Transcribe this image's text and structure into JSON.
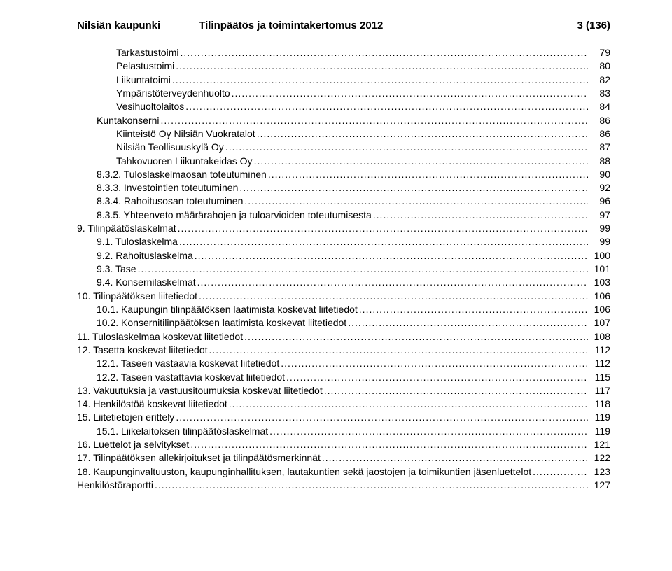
{
  "header": {
    "left": "Nilsiän kaupunki",
    "center": "Tilinpäätös ja toimintakertomus 2012",
    "right": "3 (136)"
  },
  "toc": [
    {
      "label": "Tarkastustoimi",
      "page": "79",
      "indent": 2
    },
    {
      "label": "Pelastustoimi",
      "page": "80",
      "indent": 2
    },
    {
      "label": "Liikuntatoimi",
      "page": "82",
      "indent": 2
    },
    {
      "label": "Ympäristöterveydenhuolto",
      "page": "83",
      "indent": 2
    },
    {
      "label": "Vesihuoltolaitos",
      "page": "84",
      "indent": 2
    },
    {
      "label": "Kuntakonserni",
      "page": "86",
      "indent": 1
    },
    {
      "label": "Kiinteistö Oy Nilsiän Vuokratalot",
      "page": "86",
      "indent": 2
    },
    {
      "label": "Nilsiän Teollisuuskylä Oy",
      "page": "87",
      "indent": 2
    },
    {
      "label": "Tahkovuoren Liikuntakeidas Oy",
      "page": "88",
      "indent": 2
    },
    {
      "label": "8.3.2. Tuloslaskelmaosan toteutuminen",
      "page": "90",
      "indent": 1
    },
    {
      "label": "8.3.3. Investointien toteutuminen",
      "page": "92",
      "indent": 1
    },
    {
      "label": "8.3.4. Rahoitusosan toteutuminen",
      "page": "96",
      "indent": 1
    },
    {
      "label": "8.3.5. Yhteenveto määrärahojen ja tuloarvioiden toteutumisesta",
      "page": "97",
      "indent": 1
    },
    {
      "label": "9. Tilinpäätöslaskelmat",
      "page": "99",
      "indent": 0
    },
    {
      "label": "9.1. Tuloslaskelma",
      "page": "99",
      "indent": 1
    },
    {
      "label": "9.2. Rahoituslaskelma",
      "page": "100",
      "indent": 1
    },
    {
      "label": "9.3. Tase",
      "page": "101",
      "indent": 1
    },
    {
      "label": "9.4. Konsernilaskelmat",
      "page": "103",
      "indent": 1
    },
    {
      "label": "10. Tilinpäätöksen liitetiedot",
      "page": "106",
      "indent": 0
    },
    {
      "label": "10.1. Kaupungin tilinpäätöksen laatimista koskevat liitetiedot",
      "page": "106",
      "indent": 1
    },
    {
      "label": "10.2. Konsernitilinpäätöksen laatimista koskevat liitetiedot",
      "page": "107",
      "indent": 1
    },
    {
      "label": "11. Tuloslaskelmaa koskevat liitetiedot",
      "page": "108",
      "indent": 0
    },
    {
      "label": "12. Tasetta koskevat liitetiedot",
      "page": "112",
      "indent": 0
    },
    {
      "label": "12.1. Taseen vastaavia koskevat liitetiedot",
      "page": "112",
      "indent": 1
    },
    {
      "label": "12.2. Taseen vastattavia koskevat liitetiedot",
      "page": "115",
      "indent": 1
    },
    {
      "label": "13. Vakuutuksia ja vastuusitoumuksia koskevat liitetiedot",
      "page": "117",
      "indent": 0
    },
    {
      "label": "14. Henkilöstöä koskevat liitetiedot",
      "page": "118",
      "indent": 0
    },
    {
      "label": "15. Liitetietojen erittely",
      "page": "119",
      "indent": 0
    },
    {
      "label": "15.1. Liikelaitoksen tilinpäätöslaskelmat",
      "page": "119",
      "indent": 1
    },
    {
      "label": "16. Luettelot ja selvitykset",
      "page": "121",
      "indent": 0
    },
    {
      "label": "17. Tilinpäätöksen allekirjoitukset ja tilinpäätösmerkinnät",
      "page": "122",
      "indent": 0
    },
    {
      "label": "18. Kaupunginvaltuuston, kaupunginhallituksen, lautakuntien sekä jaostojen ja toimikuntien jäsenluettelot",
      "page": "123",
      "indent": 0
    },
    {
      "label": "Henkilöstöraportti",
      "page": "127",
      "indent": 0
    }
  ]
}
